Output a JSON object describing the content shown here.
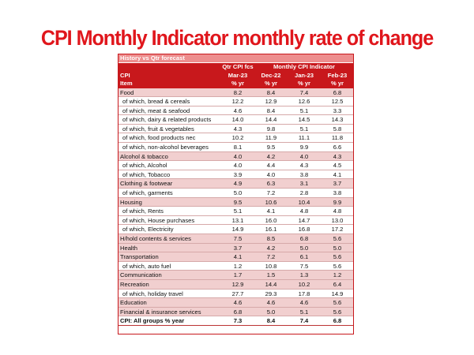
{
  "title": "CPI Monthly Indicator monthly rate of change",
  "table": {
    "section_label": "History vs Qtr forecast",
    "header": {
      "row1": [
        "",
        "Qtr CPI fcs",
        "Monthly CPI Indicator"
      ],
      "row2": [
        "CPI",
        "Mar-23",
        "Dec-22",
        "Jan-23",
        "Feb-23"
      ],
      "row3": [
        "Item",
        "% yr",
        "% yr",
        "% yr",
        "% yr"
      ]
    },
    "rows": [
      {
        "label": "Food",
        "values": [
          "8.2",
          "8.4",
          "7.4",
          "6.8"
        ],
        "type": "cat"
      },
      {
        "label": "of which, bread & cereals",
        "values": [
          "12.2",
          "12.9",
          "12.6",
          "12.5"
        ],
        "type": "sub"
      },
      {
        "label": "of which, meat & seafood",
        "values": [
          "4.6",
          "8.4",
          "5.1",
          "3.3"
        ],
        "type": "sub"
      },
      {
        "label": "of which, dairy & related products",
        "values": [
          "14.0",
          "14.4",
          "14.5",
          "14.3"
        ],
        "type": "sub"
      },
      {
        "label": "of which, fruit & vegetables",
        "values": [
          "4.3",
          "9.8",
          "5.1",
          "5.8"
        ],
        "type": "sub"
      },
      {
        "label": "of which, food products nec",
        "values": [
          "10.2",
          "11.9",
          "11.1",
          "11.8"
        ],
        "type": "sub"
      },
      {
        "label": "of which, non-alcohol beverages",
        "values": [
          "8.1",
          "9.5",
          "9.9",
          "6.6"
        ],
        "type": "sub"
      },
      {
        "label": "Alcohol & tobacco",
        "values": [
          "4.0",
          "4.2",
          "4.0",
          "4.3"
        ],
        "type": "cat"
      },
      {
        "label": "of which, Alcohol",
        "values": [
          "4.0",
          "4.4",
          "4.3",
          "4.5"
        ],
        "type": "sub"
      },
      {
        "label": "of which, Tobacco",
        "values": [
          "3.9",
          "4.0",
          "3.8",
          "4.1"
        ],
        "type": "sub"
      },
      {
        "label": "Clothing & footwear",
        "values": [
          "4.9",
          "6.3",
          "3.1",
          "3.7"
        ],
        "type": "cat"
      },
      {
        "label": "of which, garments",
        "values": [
          "5.0",
          "7.2",
          "2.8",
          "3.8"
        ],
        "type": "sub"
      },
      {
        "label": "Housing",
        "values": [
          "9.5",
          "10.6",
          "10.4",
          "9.9"
        ],
        "type": "cat"
      },
      {
        "label": "of which, Rents",
        "values": [
          "5.1",
          "4.1",
          "4.8",
          "4.8"
        ],
        "type": "sub"
      },
      {
        "label": "of which, House purchases",
        "values": [
          "13.1",
          "16.0",
          "14.7",
          "13.0"
        ],
        "type": "sub"
      },
      {
        "label": "of which, Electricity",
        "values": [
          "14.9",
          "16.1",
          "16.8",
          "17.2"
        ],
        "type": "sub"
      },
      {
        "label": "H/hold contents & services",
        "values": [
          "7.5",
          "8.5",
          "6.8",
          "5.6"
        ],
        "type": "cat"
      },
      {
        "label": "Health",
        "values": [
          "3.7",
          "4.2",
          "5.0",
          "5.0"
        ],
        "type": "cat"
      },
      {
        "label": "Transportation",
        "values": [
          "4.1",
          "7.2",
          "6.1",
          "5.6"
        ],
        "type": "cat"
      },
      {
        "label": "of which, auto fuel",
        "values": [
          "1.2",
          "10.8",
          "7.5",
          "5.6"
        ],
        "type": "sub"
      },
      {
        "label": "Communication",
        "values": [
          "1.7",
          "1.5",
          "1.3",
          "1.2"
        ],
        "type": "cat"
      },
      {
        "label": "Recreation",
        "values": [
          "12.9",
          "14.4",
          "10.2",
          "6.4"
        ],
        "type": "cat"
      },
      {
        "label": "of which, holiday travel",
        "values": [
          "27.7",
          "29.3",
          "17.8",
          "14.9"
        ],
        "type": "sub"
      },
      {
        "label": "Education",
        "values": [
          "4.6",
          "4.6",
          "4.6",
          "5.6"
        ],
        "type": "cat"
      },
      {
        "label": "Financial & insurance services",
        "values": [
          "6.8",
          "5.0",
          "5.1",
          "5.6"
        ],
        "type": "cat"
      },
      {
        "label": "CPI: All groups % year",
        "values": [
          "7.3",
          "8.4",
          "7.4",
          "6.8"
        ],
        "type": "total"
      }
    ]
  }
}
